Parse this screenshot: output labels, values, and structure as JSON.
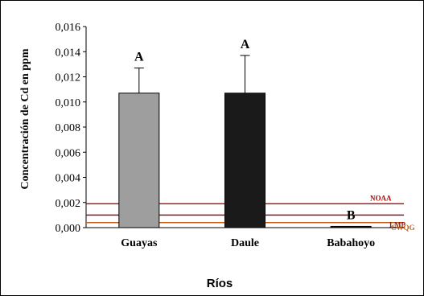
{
  "chart_data": {
    "type": "bar",
    "categories": [
      "Guayas",
      "Daule",
      "Babahoyo"
    ],
    "values": [
      0.0107,
      0.0107,
      0.0001
    ],
    "error_plus": [
      0.002,
      0.003,
      0.0
    ],
    "group_letters": [
      "A",
      "A",
      "B"
    ],
    "bar_colors": [
      "#9e9e9e",
      "#1a1a1a",
      "#1a1a1a"
    ],
    "xlabel": "Ríos",
    "ylabel": "Concentración  de Cd en ppm",
    "ylim": [
      0,
      0.016
    ],
    "yticks": [
      "0,000",
      "0,002",
      "0,004",
      "0,006",
      "0,008",
      "0,010",
      "0,012",
      "0,014",
      "0,016"
    ],
    "reference_lines": [
      {
        "name": "NOAA",
        "value": 0.0019,
        "color": "#c00000"
      },
      {
        "name": "LMP",
        "value": 0.001,
        "color": "#8b1a1a"
      },
      {
        "name": "CWQG",
        "value": 0.0004,
        "color": "#c0601a"
      }
    ],
    "grid": false,
    "legend": "none"
  }
}
